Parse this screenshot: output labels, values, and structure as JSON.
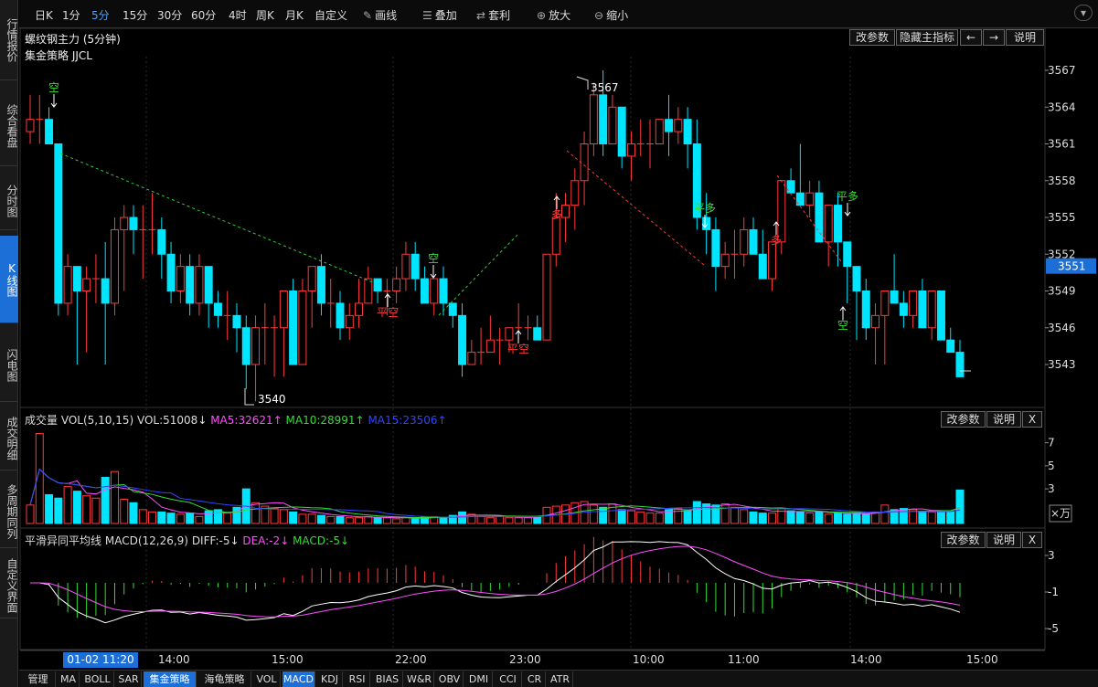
{
  "sidebar": {
    "items": [
      "行情报价",
      "综合看盘",
      "分时图",
      "K线图",
      "闪电图",
      "成交明细",
      "多周期同列",
      "自定义界面"
    ]
  },
  "toolbar": {
    "items": [
      "日K",
      "1分",
      "5分",
      "15分",
      "30分",
      "60分",
      "4时",
      "周K",
      "月K",
      "自定义",
      "画线",
      "叠加",
      "套利",
      "放大",
      "缩小"
    ],
    "active": "5分"
  },
  "main": {
    "title": "螺纹钢主力 (5分钟)",
    "strategy": "集金策略 JJCL",
    "buttons": [
      "改参数",
      "隐藏主指标",
      "←",
      "→",
      "说明"
    ],
    "yticks": [
      "3567",
      "3564",
      "3561",
      "3558",
      "3555",
      "3552",
      "3549",
      "3546",
      "3543"
    ],
    "current_price": "3551",
    "high_label": "3567",
    "low_label": "3540",
    "signals": [
      {
        "text": "空",
        "color": "green"
      },
      {
        "text": "平空",
        "color": "red"
      },
      {
        "text": "空",
        "color": "green"
      },
      {
        "text": "平空",
        "color": "red"
      },
      {
        "text": "多",
        "color": "red"
      },
      {
        "text": "平多",
        "color": "green"
      },
      {
        "text": "多",
        "color": "red"
      },
      {
        "text": "平多",
        "color": "green"
      },
      {
        "text": "空",
        "color": "green"
      }
    ]
  },
  "volume": {
    "name": "成交量",
    "params": "VOL(5,10,15)",
    "vol": "VOL:51008↓",
    "ma5": "MA5:32621↑",
    "ma10": "MA10:28991↑",
    "ma15": "MA15:23506↑",
    "buttons": [
      "改参数",
      "说明",
      "X"
    ],
    "yticks": [
      "7",
      "5",
      "3"
    ],
    "unit": "×万"
  },
  "macd": {
    "name": "平滑异同平均线",
    "params": "MACD(12,26,9)",
    "diff": "DIFF:-5↓",
    "dea": "DEA:-2↓",
    "macd": "MACD:-5↓",
    "buttons": [
      "改参数",
      "说明",
      "X"
    ],
    "yticks": [
      "3",
      "-1",
      "-5"
    ]
  },
  "xaxis": {
    "date": "01-02 11:20",
    "labels": [
      "14:00",
      "15:00",
      "22:00",
      "23:00",
      "10:00",
      "11:00",
      "14:00",
      "15:00"
    ]
  },
  "bottom": {
    "tabs": [
      "管理",
      "MA",
      "BOLL",
      "SAR",
      "集金策略",
      "海龟策略",
      "VOL",
      "MACD",
      "KDJ",
      "RSI",
      "BIAS",
      "W&R",
      "OBV",
      "DMI",
      "CCI",
      "CR",
      "ATR"
    ],
    "active": [
      "集金策略",
      "MACD"
    ]
  },
  "colors": {
    "up": "#ff3a3a",
    "down": "#00e5ff",
    "ma5": "#ff4dff",
    "ma10": "#33dd33",
    "ma15": "#3344ff",
    "signal_green": "#33dd33",
    "signal_red": "#ff3a3a"
  },
  "chart_data": {
    "type": "candlestick",
    "ohlc": [
      [
        3562,
        3565,
        3561,
        3563
      ],
      [
        3563,
        3565,
        3561,
        3563
      ],
      [
        3563,
        3564,
        3561,
        3561
      ],
      [
        3561,
        3561,
        3547,
        3548
      ],
      [
        3548,
        3552,
        3547,
        3551
      ],
      [
        3551,
        3551,
        3543,
        3549
      ],
      [
        3549,
        3551,
        3544,
        3550
      ],
      [
        3550,
        3552,
        3548,
        3550
      ],
      [
        3550,
        3553,
        3543,
        3548
      ],
      [
        3548,
        3555,
        3547,
        3554
      ],
      [
        3554,
        3556,
        3549,
        3555
      ],
      [
        3555,
        3556,
        3552,
        3554
      ],
      [
        3554,
        3556,
        3550,
        3554
      ],
      [
        3554,
        3557,
        3552,
        3554
      ],
      [
        3554,
        3555,
        3550,
        3552
      ],
      [
        3552,
        3553,
        3548,
        3549
      ],
      [
        3549,
        3552,
        3548,
        3551
      ],
      [
        3551,
        3552,
        3547,
        3548
      ],
      [
        3548,
        3552,
        3547,
        3551
      ],
      [
        3551,
        3551,
        3546,
        3548
      ],
      [
        3548,
        3549,
        3546,
        3547
      ],
      [
        3547,
        3549,
        3545,
        3547
      ],
      [
        3547,
        3548,
        3544,
        3546
      ],
      [
        3546,
        3547,
        3541,
        3543
      ],
      [
        3543,
        3547,
        3540,
        3546
      ],
      [
        3546,
        3548,
        3543,
        3546
      ],
      [
        3546,
        3547,
        3542,
        3546
      ],
      [
        3546,
        3549,
        3542,
        3549
      ],
      [
        3549,
        3550,
        3543,
        3543
      ],
      [
        3543,
        3550,
        3543,
        3549
      ],
      [
        3549,
        3551,
        3546,
        3551
      ],
      [
        3551,
        3552,
        3547,
        3548
      ],
      [
        3548,
        3550,
        3546,
        3548
      ],
      [
        3548,
        3549,
        3545,
        3546
      ],
      [
        3546,
        3548,
        3545,
        3547
      ],
      [
        3547,
        3550,
        3546,
        3548
      ],
      [
        3548,
        3551,
        3548,
        3550
      ],
      [
        3550,
        3550,
        3548,
        3549
      ],
      [
        3549,
        3550,
        3547,
        3549
      ],
      [
        3549,
        3551,
        3548,
        3550
      ],
      [
        3550,
        3553,
        3549,
        3552
      ],
      [
        3552,
        3553,
        3549,
        3550
      ],
      [
        3550,
        3551,
        3548,
        3548
      ],
      [
        3548,
        3550,
        3547,
        3550
      ],
      [
        3550,
        3551,
        3547,
        3548
      ],
      [
        3548,
        3548,
        3546,
        3547
      ],
      [
        3547,
        3548,
        3542,
        3543
      ],
      [
        3543,
        3545,
        3543,
        3544
      ],
      [
        3544,
        3546,
        3543,
        3544
      ],
      [
        3544,
        3547,
        3544,
        3545
      ],
      [
        3545,
        3546,
        3543,
        3545
      ],
      [
        3545,
        3546,
        3544,
        3546
      ],
      [
        3546,
        3548,
        3545,
        3546
      ],
      [
        3546,
        3547,
        3545,
        3546
      ],
      [
        3546,
        3547,
        3545,
        3545
      ],
      [
        3545,
        3552,
        3545,
        3552
      ],
      [
        3552,
        3557,
        3551,
        3555
      ],
      [
        3555,
        3557,
        3553,
        3556
      ],
      [
        3556,
        3559,
        3554,
        3558
      ],
      [
        3558,
        3562,
        3556,
        3561
      ],
      [
        3561,
        3566,
        3560,
        3565
      ],
      [
        3565,
        3567,
        3560,
        3561
      ],
      [
        3561,
        3565,
        3561,
        3564
      ],
      [
        3564,
        3564,
        3559,
        3560
      ],
      [
        3560,
        3562,
        3558,
        3561
      ],
      [
        3561,
        3563,
        3560,
        3561
      ],
      [
        3561,
        3563,
        3559,
        3561
      ],
      [
        3561,
        3563,
        3561,
        3563
      ],
      [
        3563,
        3565,
        3560,
        3562
      ],
      [
        3562,
        3564,
        3561,
        3563
      ],
      [
        3563,
        3564,
        3559,
        3561
      ],
      [
        3561,
        3563,
        3554,
        3555
      ],
      [
        3555,
        3557,
        3552,
        3554
      ],
      [
        3554,
        3555,
        3549,
        3551
      ],
      [
        3551,
        3553,
        3550,
        3552
      ],
      [
        3552,
        3554,
        3550,
        3552
      ],
      [
        3552,
        3555,
        3551,
        3554
      ],
      [
        3554,
        3555,
        3552,
        3552
      ],
      [
        3552,
        3554,
        3550,
        3550
      ],
      [
        3550,
        3553,
        3549,
        3553
      ],
      [
        3553,
        3558,
        3552,
        3558
      ],
      [
        3558,
        3559,
        3557,
        3557
      ],
      [
        3557,
        3561,
        3556,
        3556
      ],
      [
        3556,
        3558,
        3555,
        3557
      ],
      [
        3557,
        3558,
        3553,
        3553
      ],
      [
        3553,
        3556,
        3551,
        3556
      ],
      [
        3556,
        3557,
        3551,
        3553
      ],
      [
        3553,
        3553,
        3548,
        3551
      ],
      [
        3551,
        3551,
        3545,
        3549
      ],
      [
        3549,
        3550,
        3545,
        3546
      ],
      [
        3546,
        3548,
        3543,
        3547
      ],
      [
        3547,
        3549,
        3543,
        3549
      ],
      [
        3549,
        3552,
        3548,
        3548
      ],
      [
        3548,
        3549,
        3546,
        3547
      ],
      [
        3547,
        3549,
        3546,
        3549
      ],
      [
        3549,
        3550,
        3546,
        3546
      ],
      [
        3546,
        3549,
        3545,
        3549
      ],
      [
        3549,
        3549,
        3545,
        3545
      ],
      [
        3545,
        3546,
        3544,
        3544
      ],
      [
        3544,
        3545,
        3542,
        3542
      ]
    ],
    "volume": [
      1.6,
      7.8,
      2.5,
      2.2,
      3.2,
      2.8,
      2.4,
      2.2,
      4.0,
      4.5,
      2.1,
      1.8,
      1.2,
      1.0,
      1.0,
      0.9,
      0.8,
      0.9,
      0.6,
      1.1,
      1.2,
      0.9,
      1.4,
      3.0,
      1.8,
      1.5,
      1.3,
      1.2,
      1.0,
      0.8,
      0.8,
      0.7,
      0.6,
      0.6,
      0.5,
      0.5,
      0.6,
      0.5,
      0.5,
      0.4,
      0.5,
      0.4,
      0.6,
      0.6,
      0.5,
      0.7,
      1.0,
      0.8,
      0.6,
      0.5,
      0.6,
      0.5,
      0.5,
      0.5,
      0.6,
      1.4,
      1.5,
      1.6,
      1.8,
      1.9,
      1.6,
      1.4,
      1.7,
      1.2,
      1.1,
      1.0,
      0.9,
      0.9,
      1.2,
      1.3,
      1.1,
      1.9,
      1.7,
      1.6,
      1.7,
      1.4,
      1.2,
      1.0,
      0.9,
      0.9,
      1.3,
      1.1,
      1.0,
      0.9,
      1.0,
      0.8,
      0.9,
      0.8,
      0.9,
      0.8,
      1.0,
      1.6,
      1.2,
      1.3,
      1.2,
      1.0,
      1.0,
      1.1,
      1.0,
      2.9
    ],
    "xlabels": [
      "14:00",
      "15:00",
      "22:00",
      "23:00",
      "10:00",
      "11:00",
      "14:00",
      "15:00"
    ],
    "ylim": [
      3540,
      3568
    ]
  }
}
